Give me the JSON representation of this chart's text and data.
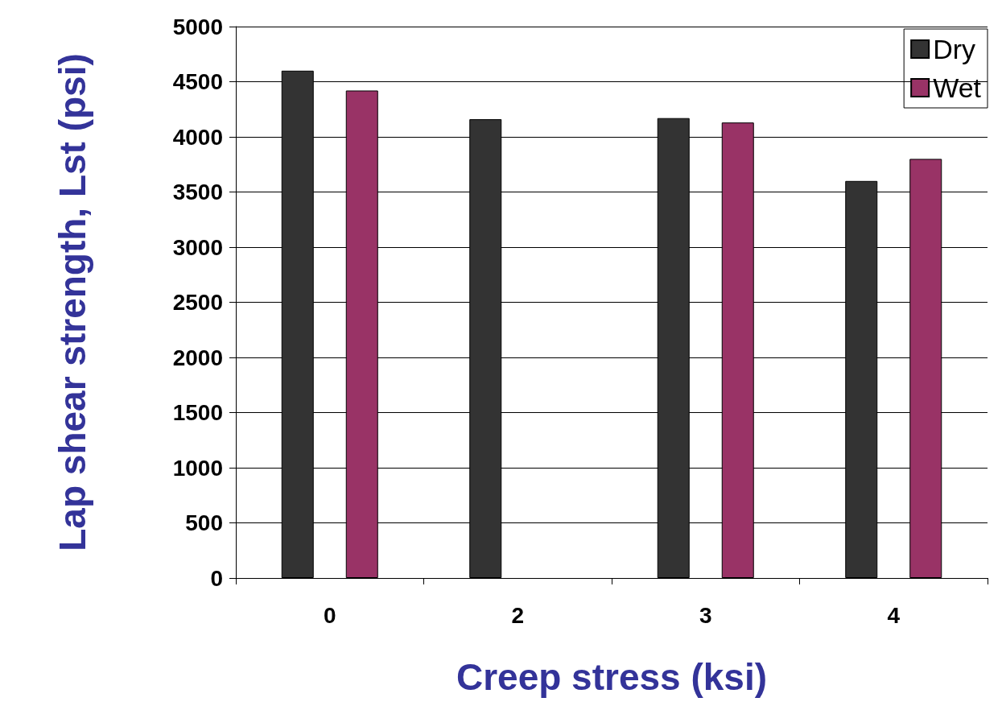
{
  "chart_data": {
    "type": "bar",
    "xlabel": "Creep stress (ksi)",
    "ylabel": "Lap shear strength, Lst (psi)",
    "categories": [
      "0",
      "2",
      "3",
      "4"
    ],
    "series": [
      {
        "name": "Dry",
        "color": "#333333",
        "values": [
          4600,
          4160,
          4170,
          3600
        ]
      },
      {
        "name": "Wet",
        "color": "#993366",
        "values": [
          4420,
          null,
          4130,
          3800
        ]
      }
    ],
    "ylim": [
      0,
      5000
    ],
    "yticks": [
      0,
      500,
      1000,
      1500,
      2000,
      2500,
      3000,
      3500,
      4000,
      4500,
      5000
    ],
    "grid": "y",
    "legend": "top right"
  }
}
